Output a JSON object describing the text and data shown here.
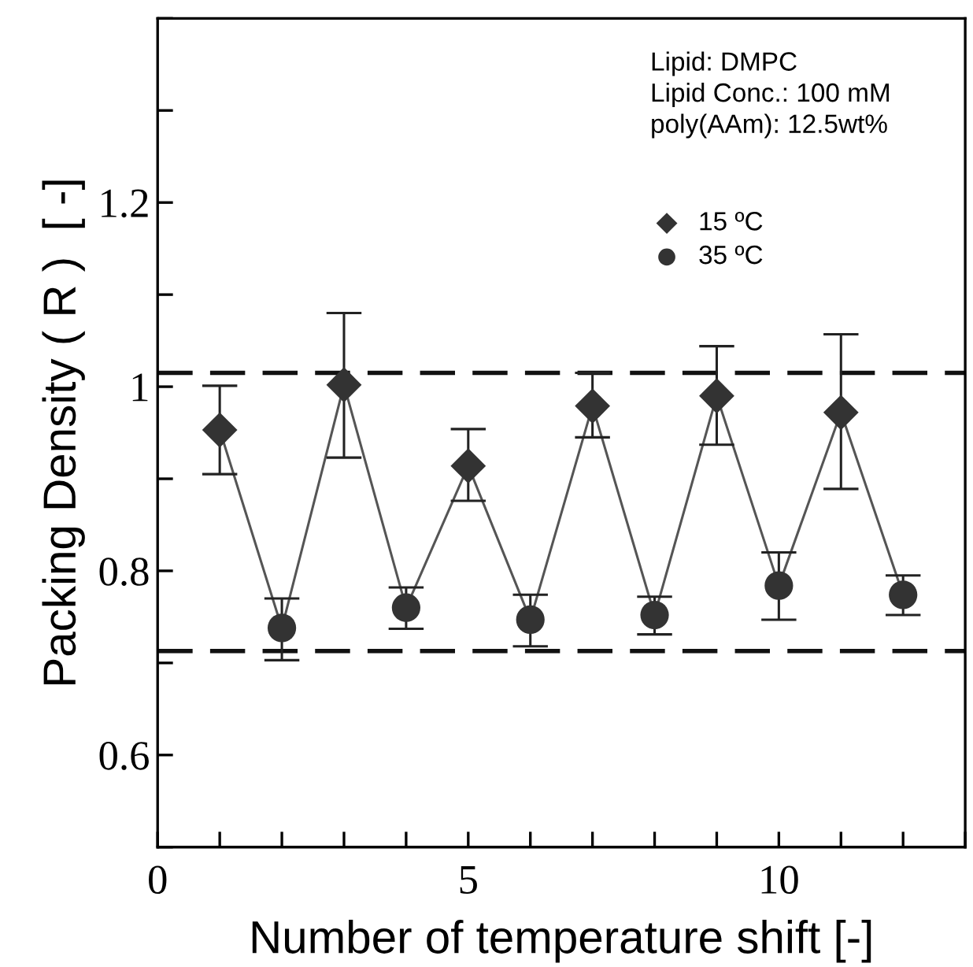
{
  "chart_data": {
    "type": "scatter",
    "xlabel": "Number of temperature shift [-]",
    "ylabel": "Packing Density ( R )  [ -]",
    "xlim": [
      0,
      13
    ],
    "ylim": [
      0.5,
      1.4
    ],
    "xticks": [
      0,
      5,
      10
    ],
    "yticks": [
      0.6,
      0.8,
      {
        "value": 1.0,
        "label": "1"
      },
      1.2
    ],
    "series": [
      {
        "type": "line",
        "color": "#555555",
        "x": [
          1,
          2,
          3,
          4,
          5,
          6,
          7,
          8,
          9,
          10,
          11,
          12
        ],
        "values": [
          0.953,
          0.738,
          1.002,
          0.76,
          0.914,
          0.747,
          0.979,
          0.752,
          0.99,
          0.784,
          0.972,
          0.774
        ]
      },
      {
        "name": "15 ºC",
        "marker": "diamond",
        "color": "#333333",
        "x": [
          1,
          3,
          5,
          7,
          9,
          11
        ],
        "values": [
          0.953,
          1.002,
          0.914,
          0.979,
          0.99,
          0.972
        ],
        "errors": [
          [
            0.905,
            1.001
          ],
          [
            0.923,
            1.08
          ],
          [
            0.876,
            0.954
          ],
          [
            0.945,
            1.015
          ],
          [
            0.937,
            1.044
          ],
          [
            0.889,
            1.057
          ]
        ]
      },
      {
        "name": "35 ºC",
        "marker": "circle",
        "color": "#333333",
        "x": [
          2,
          4,
          6,
          8,
          10,
          12
        ],
        "values": [
          0.738,
          0.76,
          0.747,
          0.752,
          0.784,
          0.774
        ],
        "errors": [
          [
            0.703,
            0.77
          ],
          [
            0.737,
            0.782
          ],
          [
            0.718,
            0.774
          ],
          [
            0.731,
            0.772
          ],
          [
            0.747,
            0.82
          ],
          [
            0.752,
            0.795
          ]
        ]
      }
    ],
    "ref_lines": [
      {
        "axis": "y",
        "value": 1.015,
        "line_style": "dashed",
        "color": "#111111"
      },
      {
        "axis": "y",
        "value": 0.713,
        "line_style": "dashed",
        "color": "#111111"
      }
    ],
    "annotations": [
      "Lipid: DMPC\nLipid Conc.: 100 mM\npoly(AAm): 12.5wt%"
    ],
    "legend": "top right",
    "grid": false
  }
}
